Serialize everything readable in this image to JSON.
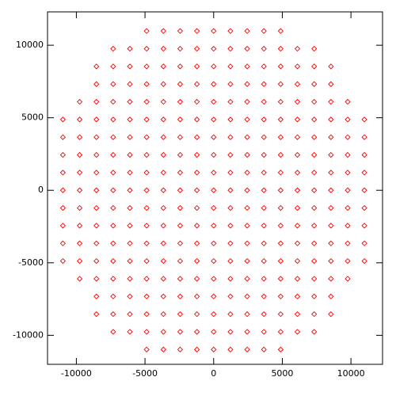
{
  "chart_data": {
    "type": "scatter",
    "color": "#ff0000",
    "xlim": [
      -12100,
      12300
    ],
    "ylim": [
      -12000,
      12300
    ],
    "xticks": [
      -10000,
      -5000,
      0,
      5000,
      10000
    ],
    "yticks": [
      -10000,
      -5000,
      0,
      5000,
      10000
    ],
    "x": [
      -4880,
      -3660,
      -2440,
      -1220,
      0,
      1220,
      2440,
      3660,
      4880,
      -7320,
      -6100,
      -4880,
      -3660,
      -2440,
      -1220,
      0,
      1220,
      2440,
      3660,
      4880,
      6100,
      7320,
      -8540,
      -7320,
      -6100,
      -4880,
      -3660,
      -2440,
      -1220,
      0,
      1220,
      2440,
      3660,
      4880,
      6100,
      7320,
      8540,
      -8540,
      -7320,
      -6100,
      -4880,
      -3660,
      -2440,
      -1220,
      0,
      1220,
      2440,
      3660,
      4880,
      6100,
      7320,
      8540,
      -9760,
      -8540,
      -7320,
      -6100,
      -4880,
      -3660,
      -2440,
      -1220,
      0,
      1220,
      2440,
      3660,
      4880,
      6100,
      7320,
      8540,
      9760,
      -10980,
      -9760,
      -8540,
      -7320,
      -6100,
      -4880,
      -3660,
      -2440,
      -1220,
      0,
      1220,
      2440,
      3660,
      4880,
      6100,
      7320,
      8540,
      9760,
      10980,
      -10980,
      -9760,
      -8540,
      -7320,
      -6100,
      -4880,
      -3660,
      -2440,
      -1220,
      0,
      1220,
      2440,
      3660,
      4880,
      6100,
      7320,
      8540,
      9760,
      10980,
      -10980,
      -9760,
      -8540,
      -7320,
      -6100,
      -4880,
      -3660,
      -2440,
      -1220,
      0,
      1220,
      2440,
      3660,
      4880,
      6100,
      7320,
      8540,
      9760,
      10980,
      -10980,
      -9760,
      -8540,
      -7320,
      -6100,
      -4880,
      -3660,
      -2440,
      -1220,
      0,
      1220,
      2440,
      3660,
      4880,
      6100,
      7320,
      8540,
      9760,
      10980,
      -10980,
      -9760,
      -8540,
      -7320,
      -6100,
      -4880,
      -3660,
      -2440,
      -1220,
      0,
      1220,
      2440,
      3660,
      4880,
      6100,
      7320,
      8540,
      9760,
      10980,
      -10980,
      -9760,
      -8540,
      -7320,
      -6100,
      -4880,
      -3660,
      -2440,
      -1220,
      0,
      1220,
      2440,
      3660,
      4880,
      6100,
      7320,
      8540,
      9760,
      10980,
      -10980,
      -9760,
      -8540,
      -7320,
      -6100,
      -4880,
      -3660,
      -2440,
      -1220,
      0,
      1220,
      2440,
      3660,
      4880,
      6100,
      7320,
      8540,
      9760,
      10980,
      -10980,
      -9760,
      -8540,
      -7320,
      -6100,
      -4880,
      -3660,
      -2440,
      -1220,
      0,
      1220,
      2440,
      3660,
      4880,
      6100,
      7320,
      8540,
      9760,
      10980,
      -10980,
      -9760,
      -8540,
      -7320,
      -6100,
      -4880,
      -3660,
      -2440,
      -1220,
      0,
      1220,
      2440,
      3660,
      4880,
      6100,
      7320,
      8540,
      9760,
      10980,
      -9760,
      -8540,
      -7320,
      -6100,
      -4880,
      -3660,
      -2440,
      -1220,
      0,
      1220,
      2440,
      3660,
      4880,
      6100,
      7320,
      8540,
      9760,
      -8540,
      -7320,
      -6100,
      -4880,
      -3660,
      -2440,
      -1220,
      0,
      1220,
      2440,
      3660,
      4880,
      6100,
      7320,
      8540,
      -8540,
      -7320,
      -6100,
      -4880,
      -3660,
      -2440,
      -1220,
      0,
      1220,
      2440,
      3660,
      4880,
      6100,
      7320,
      8540,
      -7320,
      -6100,
      -4880,
      -3660,
      -2440,
      -1220,
      0,
      1220,
      2440,
      3660,
      4880,
      6100,
      7320,
      -4880,
      -3660,
      -2440,
      -1220,
      0,
      1220,
      2440,
      3660,
      4880
    ],
    "y": [
      10980,
      10980,
      10980,
      10980,
      10980,
      10980,
      10980,
      10980,
      10980,
      9760,
      9760,
      9760,
      9760,
      9760,
      9760,
      9760,
      9760,
      9760,
      9760,
      9760,
      9760,
      9760,
      8540,
      8540,
      8540,
      8540,
      8540,
      8540,
      8540,
      8540,
      8540,
      8540,
      8540,
      8540,
      8540,
      8540,
      8540,
      7320,
      7320,
      7320,
      7320,
      7320,
      7320,
      7320,
      7320,
      7320,
      7320,
      7320,
      7320,
      7320,
      7320,
      7320,
      6100,
      6100,
      6100,
      6100,
      6100,
      6100,
      6100,
      6100,
      6100,
      6100,
      6100,
      6100,
      6100,
      6100,
      6100,
      6100,
      6100,
      4880,
      4880,
      4880,
      4880,
      4880,
      4880,
      4880,
      4880,
      4880,
      4880,
      4880,
      4880,
      4880,
      4880,
      4880,
      4880,
      4880,
      4880,
      4880,
      3660,
      3660,
      3660,
      3660,
      3660,
      3660,
      3660,
      3660,
      3660,
      3660,
      3660,
      3660,
      3660,
      3660,
      3660,
      3660,
      3660,
      3660,
      3660,
      2440,
      2440,
      2440,
      2440,
      2440,
      2440,
      2440,
      2440,
      2440,
      2440,
      2440,
      2440,
      2440,
      2440,
      2440,
      2440,
      2440,
      2440,
      2440,
      1220,
      1220,
      1220,
      1220,
      1220,
      1220,
      1220,
      1220,
      1220,
      1220,
      1220,
      1220,
      1220,
      1220,
      1220,
      1220,
      1220,
      1220,
      1220,
      0,
      0,
      0,
      0,
      0,
      0,
      0,
      0,
      0,
      0,
      0,
      0,
      0,
      0,
      0,
      0,
      0,
      0,
      0,
      -1220,
      -1220,
      -1220,
      -1220,
      -1220,
      -1220,
      -1220,
      -1220,
      -1220,
      -1220,
      -1220,
      -1220,
      -1220,
      -1220,
      -1220,
      -1220,
      -1220,
      -1220,
      -1220,
      -2440,
      -2440,
      -2440,
      -2440,
      -2440,
      -2440,
      -2440,
      -2440,
      -2440,
      -2440,
      -2440,
      -2440,
      -2440,
      -2440,
      -2440,
      -2440,
      -2440,
      -2440,
      -2440,
      -3660,
      -3660,
      -3660,
      -3660,
      -3660,
      -3660,
      -3660,
      -3660,
      -3660,
      -3660,
      -3660,
      -3660,
      -3660,
      -3660,
      -3660,
      -3660,
      -3660,
      -3660,
      -3660,
      -4880,
      -4880,
      -4880,
      -4880,
      -4880,
      -4880,
      -4880,
      -4880,
      -4880,
      -4880,
      -4880,
      -4880,
      -4880,
      -4880,
      -4880,
      -4880,
      -4880,
      -4880,
      -4880,
      -6100,
      -6100,
      -6100,
      -6100,
      -6100,
      -6100,
      -6100,
      -6100,
      -6100,
      -6100,
      -6100,
      -6100,
      -6100,
      -6100,
      -6100,
      -6100,
      -6100,
      -7320,
      -7320,
      -7320,
      -7320,
      -7320,
      -7320,
      -7320,
      -7320,
      -7320,
      -7320,
      -7320,
      -7320,
      -7320,
      -7320,
      -7320,
      -8540,
      -8540,
      -8540,
      -8540,
      -8540,
      -8540,
      -8540,
      -8540,
      -8540,
      -8540,
      -8540,
      -8540,
      -8540,
      -8540,
      -8540,
      -9760,
      -9760,
      -9760,
      -9760,
      -9760,
      -9760,
      -9760,
      -9760,
      -9760,
      -9760,
      -9760,
      -9760,
      -9760,
      -10980,
      -10980,
      -10980,
      -10980,
      -10980,
      -10980,
      -10980,
      -10980,
      -10980
    ]
  }
}
